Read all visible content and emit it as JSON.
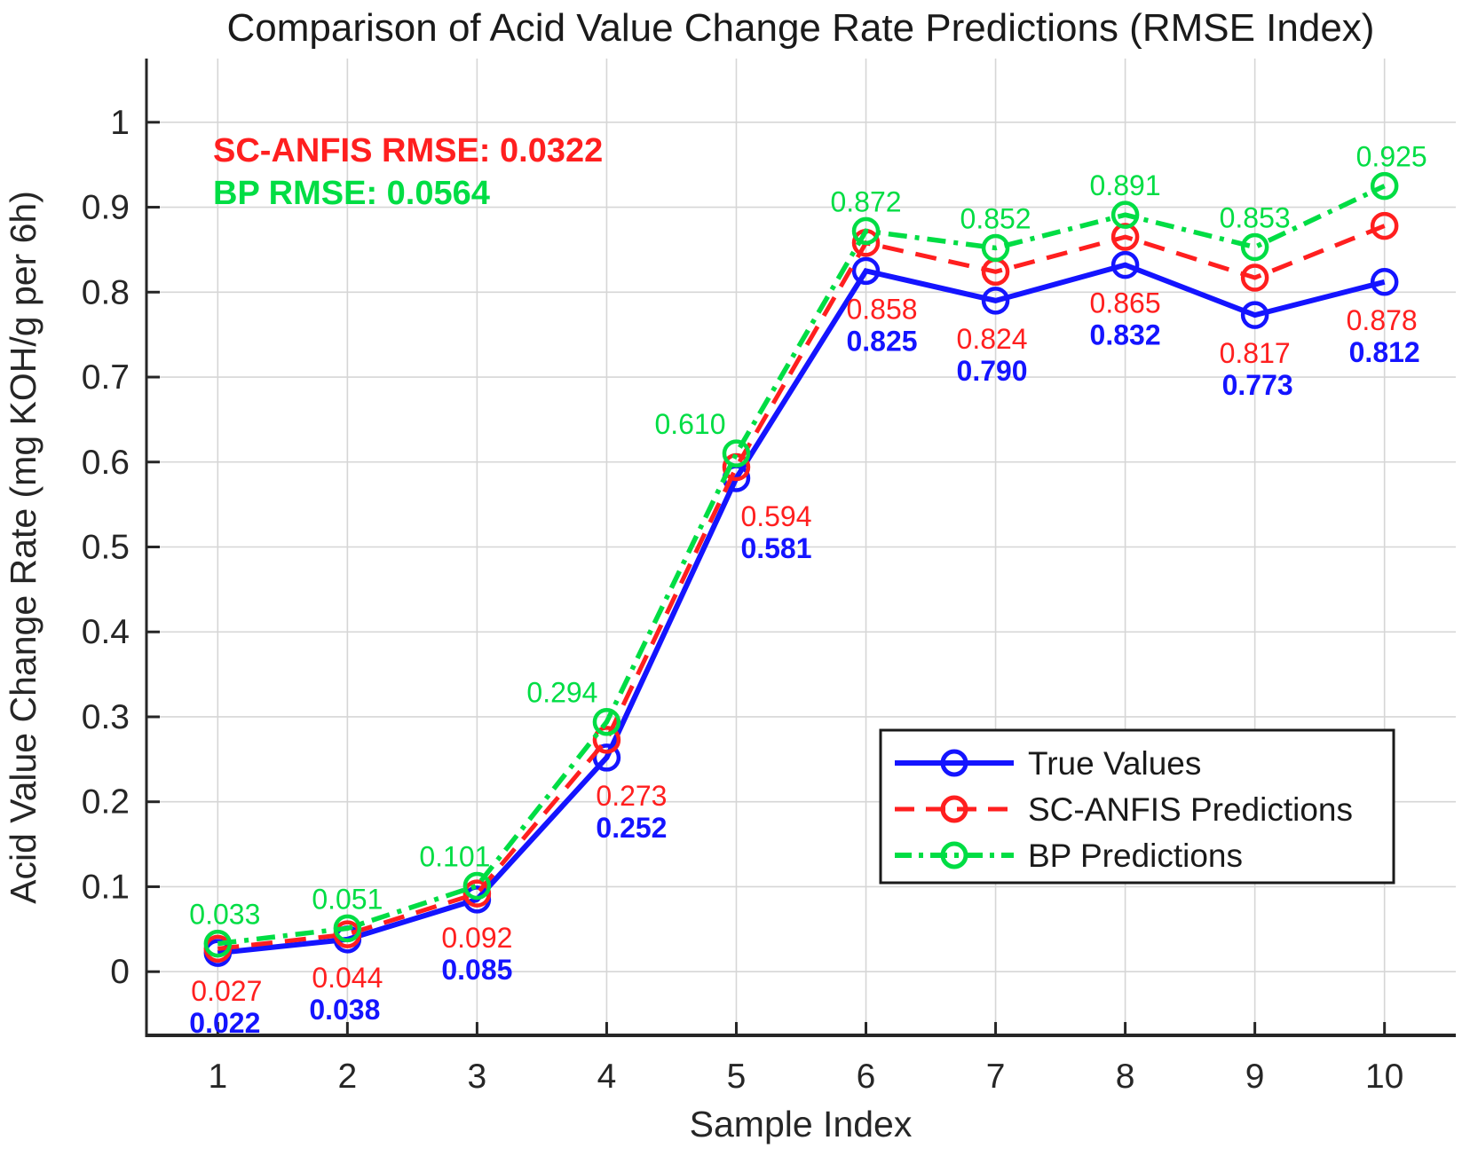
{
  "chart_data": {
    "type": "line",
    "title": "Comparison of Acid Value Change Rate Predictions (RMSE Index)",
    "xlabel": "Sample Index",
    "ylabel": "Acid Value Change Rate (mg KOH/g per 6h)",
    "x": [
      1,
      2,
      3,
      4,
      5,
      6,
      7,
      8,
      9,
      10
    ],
    "xlim": [
      0.45,
      10.55
    ],
    "ylim": [
      -0.075,
      1.075
    ],
    "yticks": [
      0,
      0.1,
      0.2,
      0.3,
      0.4,
      0.5,
      0.6,
      0.7,
      0.8,
      0.9,
      1
    ],
    "ytick_labels": [
      "0",
      "0.1",
      "0.2",
      "0.3",
      "0.4",
      "0.5",
      "0.6",
      "0.7",
      "0.8",
      "0.9",
      "1"
    ],
    "grid": true,
    "legend_position": "lower right",
    "series": [
      {
        "name": "True Values",
        "color": "#1414ff",
        "style": "solid",
        "marker": "circle",
        "values": [
          0.022,
          0.038,
          0.085,
          0.252,
          0.581,
          0.825,
          0.79,
          0.832,
          0.773,
          0.812
        ]
      },
      {
        "name": "SC-ANFIS Predictions",
        "color": "#ff1f1f",
        "style": "dashed",
        "marker": "circle",
        "values": [
          0.027,
          0.044,
          0.092,
          0.273,
          0.594,
          0.858,
          0.824,
          0.865,
          0.817,
          0.878
        ]
      },
      {
        "name": "BP Predictions",
        "color": "#00dd44",
        "style": "dash-dot",
        "marker": "circle",
        "values": [
          0.033,
          0.051,
          0.101,
          0.294,
          0.61,
          0.872,
          0.852,
          0.891,
          0.853,
          0.925
        ]
      }
    ],
    "annotations": [
      {
        "text": "SC-ANFIS RMSE: 0.0322",
        "color": "#ff1f1f"
      },
      {
        "text": "BP RMSE: 0.0564",
        "color": "#00dd44"
      }
    ],
    "colors": {
      "grid": "#d6d6d6",
      "axis": "#262626",
      "tick_text": "#262626",
      "title_text": "#1a1a1a",
      "legend_border": "#1a1a1a",
      "legend_text": "#1a1a1a"
    }
  }
}
